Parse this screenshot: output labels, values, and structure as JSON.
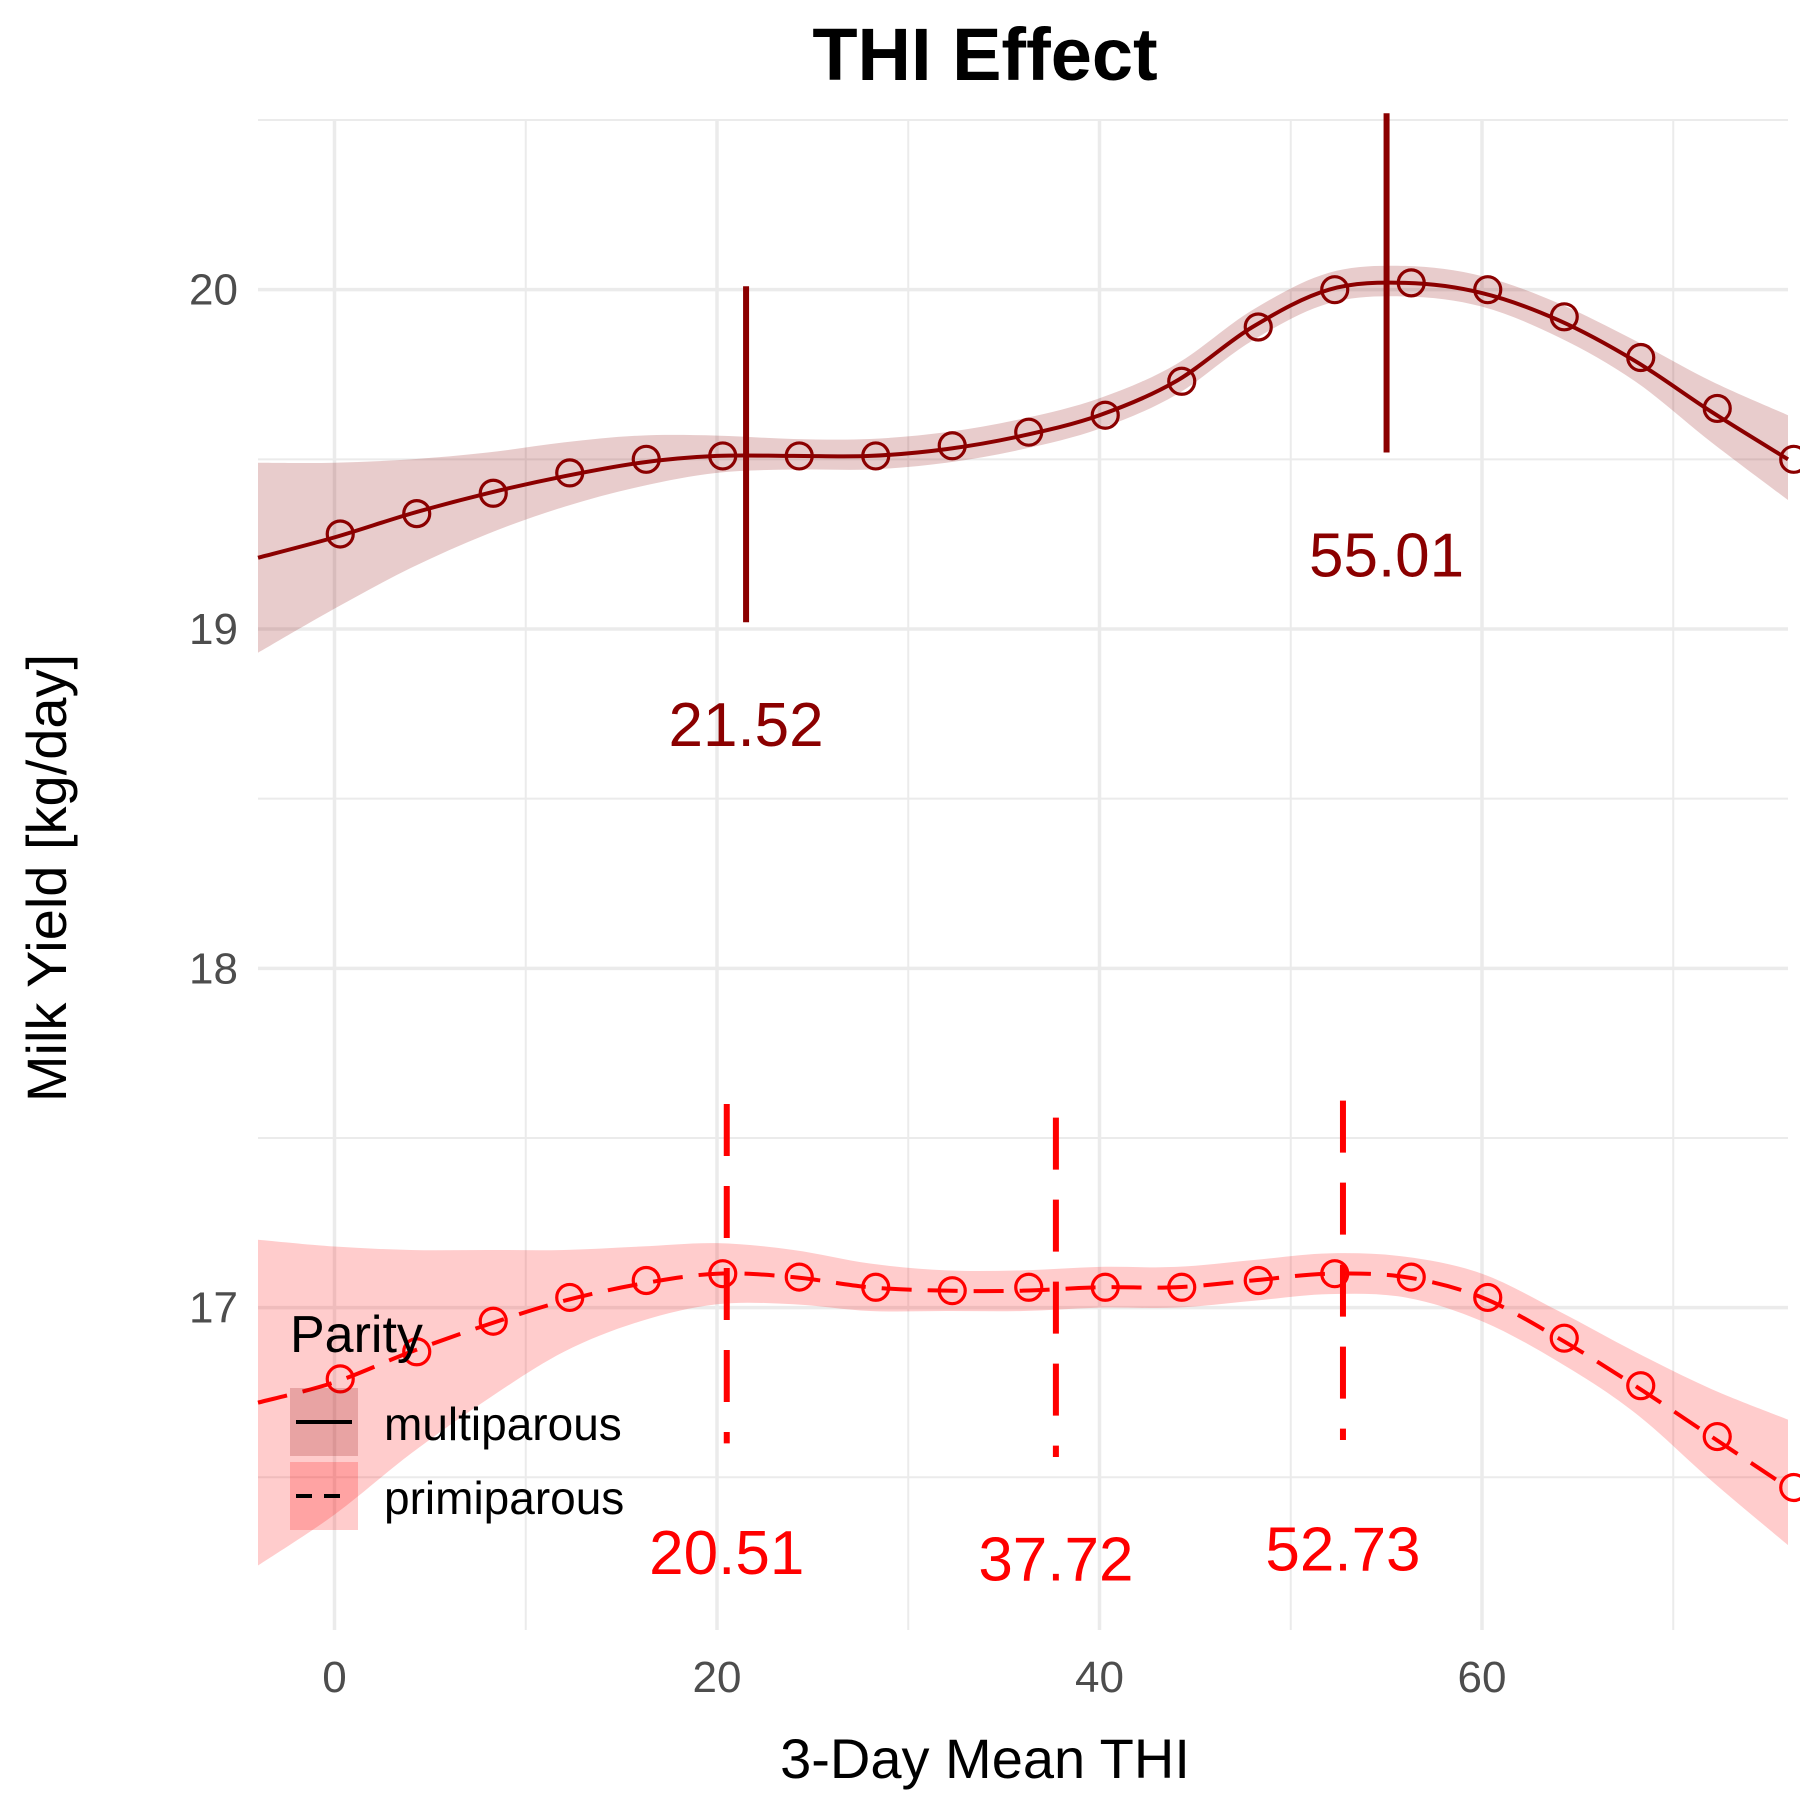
{
  "chart_data": {
    "type": "line",
    "title": "THI Effect",
    "xlabel": "3-Day Mean THI",
    "ylabel": "Milk Yield [kg/day]",
    "xlim": [
      -4,
      76
    ],
    "ylim": [
      16.05,
      20.5
    ],
    "x_ticks": [
      0,
      20,
      40,
      60
    ],
    "y_ticks": [
      17,
      18,
      19,
      20
    ],
    "grid": true,
    "legend": {
      "title": "Parity",
      "position": "bottom-left"
    },
    "colors": {
      "multiparous": "#8B0000",
      "primiparous": "#FF0000"
    },
    "series": [
      {
        "name": "multiparous",
        "line_style": "solid",
        "color": "#8B0000",
        "x": [
          0.3,
          4.3,
          8.3,
          12.3,
          16.3,
          20.3,
          24.3,
          28.3,
          32.3,
          36.3,
          40.3,
          44.3,
          48.3,
          52.3,
          56.3,
          60.3,
          64.3,
          68.3,
          72.3,
          76.3
        ],
        "y": [
          19.28,
          19.34,
          19.4,
          19.46,
          19.5,
          19.51,
          19.51,
          19.51,
          19.54,
          19.58,
          19.63,
          19.73,
          19.89,
          20.0,
          20.02,
          20.0,
          19.92,
          19.8,
          19.65,
          19.5
        ],
        "curve": {
          "x": [
            -4,
            0,
            4,
            8,
            12,
            16,
            20,
            24,
            28,
            32,
            36,
            40,
            44,
            48,
            52,
            56,
            60,
            64,
            68,
            72,
            76
          ],
          "y": [
            19.21,
            19.27,
            19.34,
            19.4,
            19.45,
            19.49,
            19.51,
            19.51,
            19.51,
            19.53,
            19.57,
            19.63,
            19.73,
            19.89,
            20.0,
            20.02,
            19.99,
            19.91,
            19.79,
            19.64,
            19.5
          ],
          "lower": [
            18.93,
            19.06,
            19.18,
            19.28,
            19.36,
            19.42,
            19.46,
            19.47,
            19.47,
            19.49,
            19.53,
            19.59,
            19.69,
            19.85,
            19.96,
            19.98,
            19.95,
            19.86,
            19.73,
            19.55,
            19.38
          ],
          "upper": [
            19.49,
            19.49,
            19.5,
            19.52,
            19.55,
            19.57,
            19.57,
            19.56,
            19.56,
            19.58,
            19.62,
            19.68,
            19.78,
            19.94,
            20.05,
            20.07,
            20.04,
            19.96,
            19.85,
            19.73,
            19.63
          ]
        },
        "breakpoints": [
          21.52,
          55.01
        ],
        "breakpoint_ranges": [
          [
            19.02,
            20.01
          ],
          [
            19.52,
            20.52
          ]
        ]
      },
      {
        "name": "primiparous",
        "line_style": "dashed",
        "color": "#FF0000",
        "x": [
          0.3,
          4.3,
          8.3,
          12.3,
          16.3,
          20.3,
          24.3,
          28.3,
          32.3,
          36.3,
          40.3,
          44.3,
          48.3,
          52.3,
          56.3,
          60.3,
          64.3,
          68.3,
          72.3,
          76.3
        ],
        "y": [
          16.79,
          16.87,
          16.96,
          17.03,
          17.08,
          17.1,
          17.09,
          17.06,
          17.05,
          17.06,
          17.06,
          17.06,
          17.08,
          17.1,
          17.09,
          17.03,
          16.91,
          16.77,
          16.62,
          16.47
        ],
        "curve": {
          "x": [
            -4,
            0,
            4,
            8,
            12,
            16,
            20,
            24,
            28,
            32,
            36,
            40,
            44,
            48,
            52,
            56,
            60,
            64,
            68,
            72,
            76
          ],
          "y": [
            16.72,
            16.78,
            16.87,
            16.95,
            17.02,
            17.07,
            17.1,
            17.09,
            17.06,
            17.05,
            17.05,
            17.06,
            17.06,
            17.08,
            17.1,
            17.09,
            17.03,
            16.91,
            16.77,
            16.62,
            16.47
          ],
          "lower": [
            16.24,
            16.39,
            16.57,
            16.73,
            16.87,
            16.96,
            17.01,
            17.01,
            16.99,
            16.99,
            16.99,
            17.0,
            17.0,
            17.02,
            17.04,
            17.03,
            16.96,
            16.84,
            16.69,
            16.49,
            16.3
          ],
          "upper": [
            17.2,
            17.18,
            17.17,
            17.17,
            17.17,
            17.18,
            17.19,
            17.17,
            17.13,
            17.11,
            17.11,
            17.12,
            17.12,
            17.14,
            17.16,
            17.15,
            17.1,
            16.99,
            16.87,
            16.76,
            16.67
          ]
        },
        "breakpoints": [
          20.51,
          37.72,
          52.73
        ],
        "breakpoint_ranges": [
          [
            16.6,
            17.6
          ],
          [
            16.56,
            17.56
          ],
          [
            16.61,
            17.61
          ]
        ]
      }
    ],
    "annotations": [
      {
        "text": "21.52",
        "x": 21.52,
        "y": 18.72,
        "series": "multiparous"
      },
      {
        "text": "55.01",
        "x": 55.01,
        "y": 19.22,
        "series": "multiparous"
      },
      {
        "text": "20.51",
        "x": 20.51,
        "y": 16.28,
        "series": "primiparous"
      },
      {
        "text": "37.72",
        "x": 37.72,
        "y": 16.26,
        "series": "primiparous"
      },
      {
        "text": "52.73",
        "x": 52.73,
        "y": 16.29,
        "series": "primiparous"
      }
    ]
  }
}
